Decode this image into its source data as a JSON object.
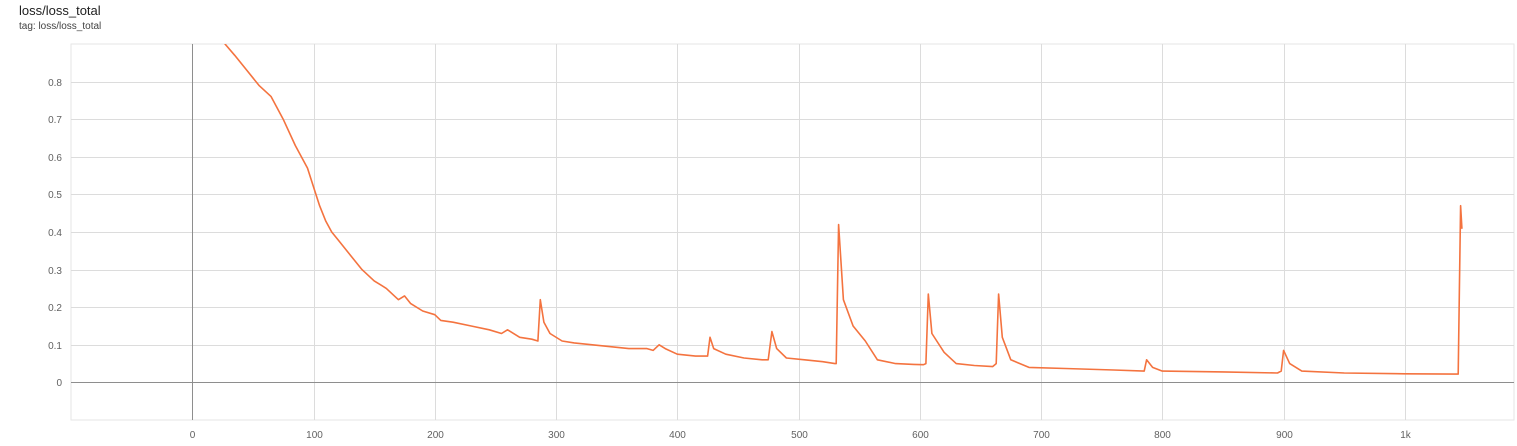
{
  "card": {
    "title": "loss/loss_total",
    "tag": "tag: loss/loss_total"
  },
  "chart_data": {
    "type": "line",
    "title": "loss/loss_total",
    "xlabel": "",
    "ylabel": "",
    "xlim": [
      -100,
      1090
    ],
    "ylim": [
      -0.1,
      0.9
    ],
    "xticks": [
      0,
      100,
      200,
      300,
      400,
      500,
      600,
      700,
      800,
      900,
      1000
    ],
    "xtick_labels": [
      "0",
      "100",
      "200",
      "300",
      "400",
      "500",
      "600",
      "700",
      "800",
      "900",
      "1k"
    ],
    "yticks": [
      0,
      0.1,
      0.2,
      0.3,
      0.4,
      0.5,
      0.6,
      0.7,
      0.8
    ],
    "ytick_labels": [
      "0",
      "0.1",
      "0.2",
      "0.3",
      "0.4",
      "0.5",
      "0.6",
      "0.7",
      "0.8"
    ],
    "grid": true,
    "line_color": "#f4733f",
    "series": [
      {
        "points": [
          [
            27,
            0.9
          ],
          [
            35,
            0.87
          ],
          [
            45,
            0.83
          ],
          [
            55,
            0.79
          ],
          [
            65,
            0.76
          ],
          [
            75,
            0.7
          ],
          [
            85,
            0.63
          ],
          [
            95,
            0.57
          ],
          [
            100,
            0.52
          ],
          [
            105,
            0.47
          ],
          [
            110,
            0.43
          ],
          [
            115,
            0.4
          ],
          [
            120,
            0.38
          ],
          [
            130,
            0.34
          ],
          [
            140,
            0.3
          ],
          [
            150,
            0.27
          ],
          [
            160,
            0.25
          ],
          [
            170,
            0.22
          ],
          [
            175,
            0.23
          ],
          [
            180,
            0.21
          ],
          [
            190,
            0.19
          ],
          [
            200,
            0.18
          ],
          [
            205,
            0.165
          ],
          [
            215,
            0.16
          ],
          [
            230,
            0.15
          ],
          [
            245,
            0.14
          ],
          [
            255,
            0.13
          ],
          [
            260,
            0.14
          ],
          [
            270,
            0.12
          ],
          [
            280,
            0.115
          ],
          [
            285,
            0.11
          ],
          [
            287,
            0.22
          ],
          [
            290,
            0.16
          ],
          [
            295,
            0.13
          ],
          [
            305,
            0.11
          ],
          [
            315,
            0.105
          ],
          [
            330,
            0.1
          ],
          [
            345,
            0.095
          ],
          [
            360,
            0.09
          ],
          [
            375,
            0.09
          ],
          [
            380,
            0.085
          ],
          [
            385,
            0.1
          ],
          [
            390,
            0.09
          ],
          [
            400,
            0.075
          ],
          [
            415,
            0.07
          ],
          [
            425,
            0.07
          ],
          [
            427,
            0.12
          ],
          [
            430,
            0.09
          ],
          [
            440,
            0.075
          ],
          [
            455,
            0.065
          ],
          [
            470,
            0.06
          ],
          [
            475,
            0.06
          ],
          [
            478,
            0.135
          ],
          [
            482,
            0.09
          ],
          [
            490,
            0.065
          ],
          [
            505,
            0.06
          ],
          [
            520,
            0.055
          ],
          [
            530,
            0.05
          ],
          [
            531,
            0.05
          ],
          [
            533,
            0.42
          ],
          [
            537,
            0.22
          ],
          [
            545,
            0.15
          ],
          [
            555,
            0.11
          ],
          [
            565,
            0.06
          ],
          [
            580,
            0.05
          ],
          [
            595,
            0.048
          ],
          [
            603,
            0.047
          ],
          [
            605,
            0.05
          ],
          [
            607,
            0.235
          ],
          [
            610,
            0.13
          ],
          [
            620,
            0.08
          ],
          [
            630,
            0.05
          ],
          [
            645,
            0.045
          ],
          [
            660,
            0.042
          ],
          [
            663,
            0.05
          ],
          [
            665,
            0.235
          ],
          [
            668,
            0.12
          ],
          [
            675,
            0.06
          ],
          [
            690,
            0.04
          ],
          [
            720,
            0.037
          ],
          [
            760,
            0.033
          ],
          [
            785,
            0.03
          ],
          [
            787,
            0.06
          ],
          [
            792,
            0.04
          ],
          [
            800,
            0.03
          ],
          [
            850,
            0.028
          ],
          [
            895,
            0.025
          ],
          [
            898,
            0.03
          ],
          [
            900,
            0.085
          ],
          [
            905,
            0.05
          ],
          [
            915,
            0.03
          ],
          [
            950,
            0.025
          ],
          [
            1000,
            0.023
          ],
          [
            1040,
            0.022
          ],
          [
            1044,
            0.022
          ],
          [
            1045,
            0.25
          ],
          [
            1046,
            0.47
          ],
          [
            1047,
            0.41
          ]
        ]
      }
    ]
  }
}
